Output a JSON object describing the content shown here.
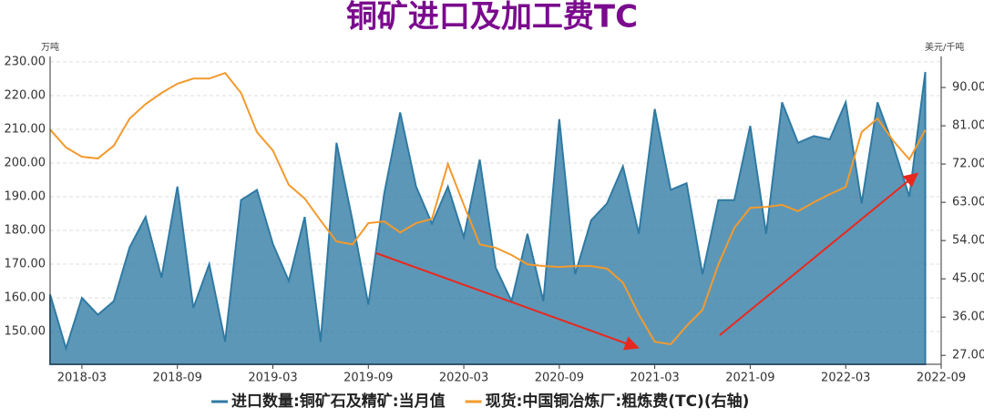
{
  "chart_data": {
    "type": "combo",
    "title": "铜矿进口及加工费TC",
    "y_unit": "万吨",
    "y2_unit": "美元/千吨",
    "x": [
      "2018-01",
      "2018-02",
      "2018-03",
      "2018-04",
      "2018-05",
      "2018-06",
      "2018-07",
      "2018-08",
      "2018-09",
      "2018-10",
      "2018-11",
      "2018-12",
      "2019-01",
      "2019-02",
      "2019-03",
      "2019-04",
      "2019-05",
      "2019-06",
      "2019-07",
      "2019-08",
      "2019-09",
      "2019-10",
      "2019-11",
      "2019-12",
      "2020-01",
      "2020-02",
      "2020-03",
      "2020-04",
      "2020-05",
      "2020-06",
      "2020-07",
      "2020-08",
      "2020-09",
      "2020-10",
      "2020-11",
      "2020-12",
      "2021-01",
      "2021-02",
      "2021-03",
      "2021-04",
      "2021-05",
      "2021-06",
      "2021-07",
      "2021-08",
      "2021-09",
      "2021-10",
      "2021-11",
      "2021-12",
      "2022-01",
      "2022-02",
      "2022-03",
      "2022-04",
      "2022-05",
      "2022-06",
      "2022-07",
      "2022-08"
    ],
    "xticks": [
      "2018-03",
      "2018-09",
      "2019-03",
      "2019-09",
      "2020-03",
      "2020-09",
      "2021-03",
      "2021-09",
      "2022-03",
      "2022-09"
    ],
    "series": [
      {
        "name": "进口数量:铜矿石及精矿:当月值",
        "type": "area",
        "color": "#2f7aa3",
        "values": [
          161,
          145,
          160,
          155,
          159,
          175,
          184,
          166,
          193,
          157,
          170,
          147,
          189,
          192,
          176,
          165,
          184,
          147,
          206,
          183,
          158,
          191,
          215,
          193,
          182,
          193,
          178,
          201,
          169,
          159,
          179,
          159,
          213,
          167,
          183,
          188,
          199,
          179,
          216,
          192,
          194,
          167,
          189,
          189,
          211,
          179,
          218,
          206,
          208,
          207,
          218,
          188,
          218,
          205,
          190,
          227
        ]
      },
      {
        "name": "现货:中国铜冶炼厂:粗炼费(TC)(右轴)",
        "type": "line",
        "axis": "y2",
        "color": "#f39a2d",
        "values": [
          80.1,
          75.9,
          73.7,
          73.3,
          76.3,
          82.7,
          86.1,
          88.7,
          90.9,
          92.1,
          92.1,
          93.4,
          88.7,
          79.5,
          75.2,
          67.1,
          63.9,
          58.7,
          53.8,
          53.1,
          58.1,
          58.5,
          55.9,
          58.1,
          59.1,
          72.0,
          62.4,
          53.1,
          52.3,
          50.6,
          48.4,
          48.0,
          47.8,
          48.0,
          48.0,
          47.4,
          44.1,
          36.6,
          30.2,
          29.6,
          33.9,
          37.7,
          48.4,
          57.0,
          61.7,
          61.9,
          62.4,
          60.9,
          63.0,
          64.9,
          66.6,
          79.5,
          82.7,
          77.4,
          73.1,
          80.0
        ]
      }
    ],
    "ylim": [
      140.3,
      231.6
    ],
    "yticks": [
      {
        "value": 150,
        "label": "150.00"
      },
      {
        "value": 160,
        "label": "160.00"
      },
      {
        "value": 170,
        "label": "170.00"
      },
      {
        "value": 180,
        "label": "180.00"
      },
      {
        "value": 190,
        "label": "190.00"
      },
      {
        "value": 200,
        "label": "200.00"
      },
      {
        "value": 210,
        "label": "210.00"
      },
      {
        "value": 220,
        "label": "220.00"
      },
      {
        "value": 230,
        "label": "230.00"
      }
    ],
    "y2lim": [
      24.9,
      97.3
    ],
    "y2ticks": [
      {
        "value": 27,
        "label": "27.00"
      },
      {
        "value": 36,
        "label": "36.00"
      },
      {
        "value": 45,
        "label": "45.00"
      },
      {
        "value": 54,
        "label": "54.00"
      },
      {
        "value": 63,
        "label": "63.00"
      },
      {
        "value": 72,
        "label": "72.00"
      },
      {
        "value": 81,
        "label": "81.00"
      },
      {
        "value": 90,
        "label": "90.00"
      }
    ],
    "grid": true,
    "legend": "bottom"
  }
}
